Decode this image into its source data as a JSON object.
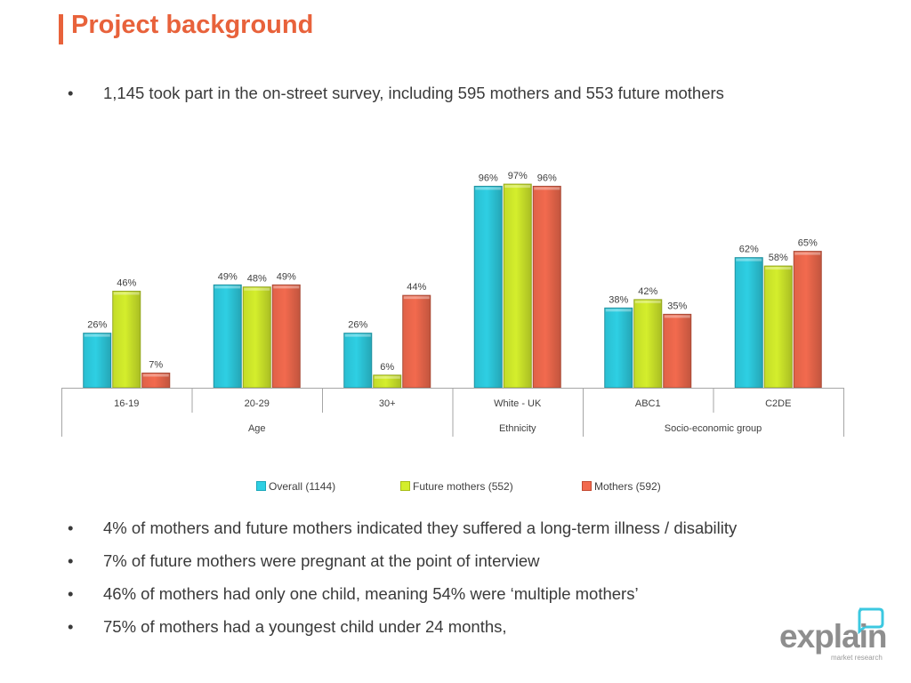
{
  "title": "Project background",
  "intro_bullet": "1,145 took part in the on-street survey, including 595 mothers and 553 future mothers",
  "bullets": [
    "4% of mothers and future mothers indicated they suffered a long-term illness / disability",
    "7% of future mothers were pregnant at the point of interview",
    "46% of mothers had only one child, meaning 54% were ‘multiple mothers’",
    "75% of mothers had a youngest child under 24 months,"
  ],
  "bullet_glyph": "•",
  "logo": {
    "word": "explain",
    "sub": "market research",
    "accent_color": "#3CC8E0"
  },
  "colors": {
    "title": "#E8623B"
  },
  "chart_data": {
    "type": "bar",
    "categories": [
      "16-19",
      "20-29",
      "30+",
      "White - UK",
      "ABC1",
      "C2DE"
    ],
    "groups": [
      {
        "label": "Age",
        "categories": [
          "16-19",
          "20-29",
          "30+"
        ]
      },
      {
        "label": "Ethnicity",
        "categories": [
          "White - UK"
        ]
      },
      {
        "label": "Socio-economic group",
        "categories": [
          "ABC1",
          "C2DE"
        ]
      }
    ],
    "series": [
      {
        "name": "Overall (1144)",
        "color": "#2ECFE3",
        "values": [
          26,
          49,
          26,
          96,
          38,
          62
        ]
      },
      {
        "name": "Future mothers (552)",
        "color": "#D4EE2C",
        "values": [
          46,
          48,
          6,
          97,
          42,
          58
        ]
      },
      {
        "name": "Mothers (592)",
        "color": "#F26A4E",
        "values": [
          7,
          49,
          44,
          96,
          35,
          65
        ]
      }
    ],
    "value_suffix": "%",
    "ylim": [
      0,
      100
    ],
    "grid": false,
    "legend_position": "bottom"
  }
}
